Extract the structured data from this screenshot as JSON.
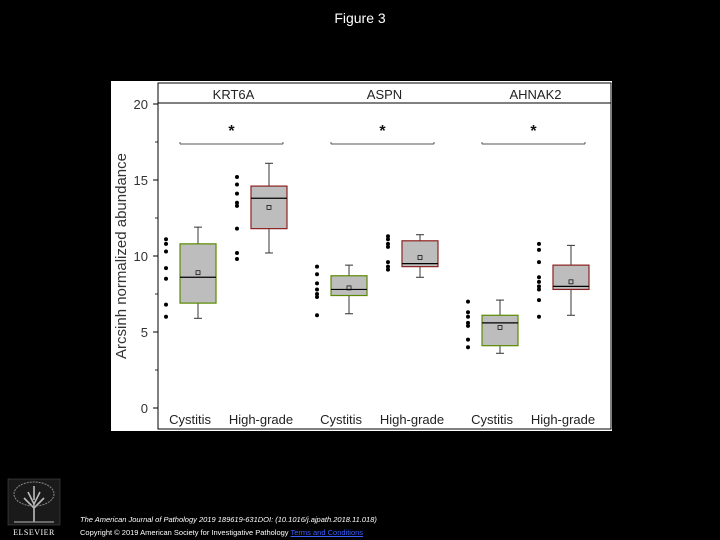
{
  "slide": {
    "title": "Figure 3"
  },
  "footer": {
    "citation": "The American Journal of Pathology 2019 189619-631DOI: (10.1016/j.ajpath.2018.11.018)",
    "copyright": "Copyright © 2019 American Society for Investigative Pathology",
    "terms_link": "Terms and Conditions",
    "publisher": "ELSEVIER"
  },
  "chart_data": {
    "type": "box",
    "ylabel": "Arcsinh normalized abundance",
    "ylim": [
      0,
      20
    ],
    "yticks": [
      0,
      5,
      10,
      15,
      20
    ],
    "grid": false,
    "panels": [
      {
        "title": "KRT6A",
        "significance": "*",
        "groups": [
          {
            "label": "Cystitis",
            "fill": "#bdbdbd",
            "edge": "#5a8a00",
            "q1": 6.9,
            "median": 8.6,
            "q3": 10.8,
            "mean": 8.9,
            "whisker_low": 5.9,
            "whisker_high": 11.9,
            "points": [
              11.1,
              10.8,
              10.3,
              9.2,
              8.5,
              6.8,
              6.0
            ]
          },
          {
            "label": "High-grade",
            "fill": "#bdbdbd",
            "edge": "#8b2020",
            "q1": 11.8,
            "median": 13.8,
            "q3": 14.6,
            "mean": 13.2,
            "whisker_low": 10.2,
            "whisker_high": 16.1,
            "points": [
              15.2,
              14.7,
              14.1,
              13.5,
              13.3,
              11.8,
              10.2,
              9.8
            ]
          }
        ]
      },
      {
        "title": "ASPN",
        "significance": "*",
        "groups": [
          {
            "label": "Cystitis",
            "fill": "#bdbdbd",
            "edge": "#5a8a00",
            "q1": 7.4,
            "median": 7.8,
            "q3": 8.7,
            "mean": 7.9,
            "whisker_low": 6.2,
            "whisker_high": 9.4,
            "points": [
              9.3,
              8.8,
              8.2,
              7.8,
              7.5,
              7.3,
              6.1
            ]
          },
          {
            "label": "High-grade",
            "fill": "#bdbdbd",
            "edge": "#8b2020",
            "q1": 9.3,
            "median": 9.5,
            "q3": 11.0,
            "mean": 9.9,
            "whisker_low": 8.6,
            "whisker_high": 11.4,
            "points": [
              11.3,
              11.1,
              10.8,
              10.6,
              9.6,
              9.3,
              9.1
            ]
          }
        ]
      },
      {
        "title": "AHNAK2",
        "significance": "*",
        "groups": [
          {
            "label": "Cystitis",
            "fill": "#bdbdbd",
            "edge": "#5a8a00",
            "q1": 4.1,
            "median": 5.6,
            "q3": 6.1,
            "mean": 5.3,
            "whisker_low": 3.6,
            "whisker_high": 7.1,
            "points": [
              7.0,
              6.3,
              6.0,
              5.6,
              5.4,
              4.5,
              4.0
            ]
          },
          {
            "label": "High-grade",
            "fill": "#bdbdbd",
            "edge": "#8b2020",
            "q1": 7.8,
            "median": 8.0,
            "q3": 9.4,
            "mean": 8.3,
            "whisker_low": 6.1,
            "whisker_high": 10.7,
            "points": [
              10.8,
              10.4,
              9.6,
              8.6,
              8.3,
              8.0,
              7.8,
              7.1,
              6.0
            ]
          }
        ]
      }
    ]
  }
}
